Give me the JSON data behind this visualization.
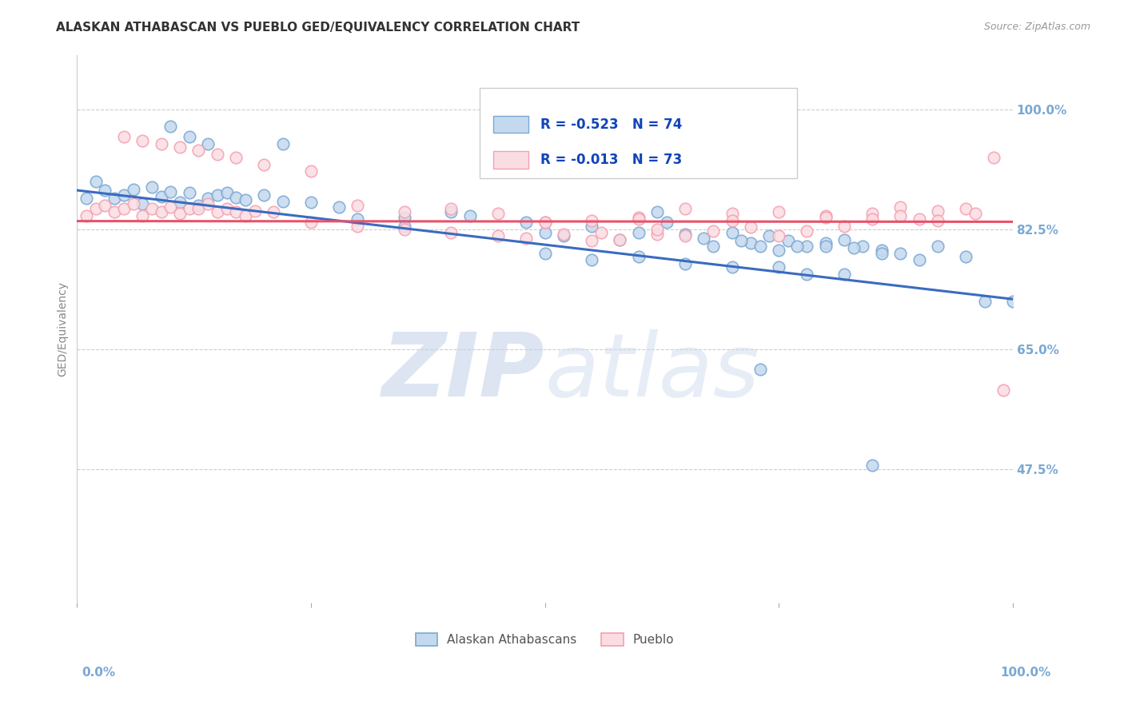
{
  "title": "ALASKAN ATHABASCAN VS PUEBLO GED/EQUIVALENCY CORRELATION CHART",
  "source": "Source: ZipAtlas.com",
  "ylabel": "GED/Equivalency",
  "ytick_labels": [
    "47.5%",
    "65.0%",
    "82.5%",
    "100.0%"
  ],
  "ytick_values": [
    0.475,
    0.65,
    0.825,
    1.0
  ],
  "xmin": 0.0,
  "xmax": 1.0,
  "ymin": 0.28,
  "ymax": 1.08,
  "blue_R": -0.523,
  "blue_N": 74,
  "pink_R": -0.013,
  "pink_N": 73,
  "blue_color": "#7AA8D4",
  "pink_color": "#F4A0B0",
  "blue_fill": "#C5D9EE",
  "pink_fill": "#FADDE3",
  "blue_line_color": "#3A6BBF",
  "pink_line_color": "#E8526A",
  "legend_label_blue": "Alaskan Athabascans",
  "legend_label_pink": "Pueblo",
  "watermark_zip": "ZIP",
  "watermark_atlas": "atlas",
  "watermark_color": "#C5D5E8",
  "blue_scatter_x": [
    0.01,
    0.02,
    0.03,
    0.04,
    0.05,
    0.06,
    0.07,
    0.08,
    0.09,
    0.1,
    0.11,
    0.12,
    0.13,
    0.14,
    0.15,
    0.16,
    0.17,
    0.18,
    0.2,
    0.22,
    0.25,
    0.28,
    0.1,
    0.12,
    0.14,
    0.22,
    0.3,
    0.35,
    0.4,
    0.5,
    0.55,
    0.6,
    0.62,
    0.65,
    0.68,
    0.7,
    0.72,
    0.74,
    0.76,
    0.78,
    0.8,
    0.82,
    0.84,
    0.86,
    0.88,
    0.9,
    0.92,
    0.95,
    0.97,
    1.0,
    0.35,
    0.42,
    0.48,
    0.52,
    0.58,
    0.63,
    0.67,
    0.71,
    0.73,
    0.75,
    0.77,
    0.8,
    0.83,
    0.86,
    0.5,
    0.55,
    0.6,
    0.65,
    0.7,
    0.75,
    0.78,
    0.82,
    0.73,
    0.85
  ],
  "blue_scatter_y": [
    0.87,
    0.895,
    0.882,
    0.87,
    0.875,
    0.883,
    0.862,
    0.887,
    0.873,
    0.88,
    0.865,
    0.878,
    0.86,
    0.87,
    0.875,
    0.879,
    0.872,
    0.868,
    0.875,
    0.866,
    0.865,
    0.858,
    0.975,
    0.96,
    0.95,
    0.95,
    0.84,
    0.842,
    0.85,
    0.82,
    0.83,
    0.82,
    0.85,
    0.818,
    0.8,
    0.82,
    0.805,
    0.815,
    0.808,
    0.8,
    0.805,
    0.81,
    0.8,
    0.795,
    0.79,
    0.78,
    0.8,
    0.785,
    0.72,
    0.72,
    0.83,
    0.845,
    0.835,
    0.815,
    0.81,
    0.835,
    0.812,
    0.808,
    0.8,
    0.795,
    0.8,
    0.8,
    0.798,
    0.79,
    0.79,
    0.78,
    0.785,
    0.775,
    0.77,
    0.77,
    0.76,
    0.76,
    0.62,
    0.48
  ],
  "pink_scatter_x": [
    0.01,
    0.02,
    0.03,
    0.04,
    0.05,
    0.06,
    0.07,
    0.08,
    0.09,
    0.1,
    0.11,
    0.12,
    0.13,
    0.14,
    0.15,
    0.16,
    0.17,
    0.18,
    0.19,
    0.21,
    0.05,
    0.07,
    0.09,
    0.11,
    0.13,
    0.15,
    0.17,
    0.2,
    0.25,
    0.3,
    0.35,
    0.4,
    0.45,
    0.5,
    0.55,
    0.6,
    0.65,
    0.7,
    0.75,
    0.8,
    0.85,
    0.88,
    0.9,
    0.92,
    0.95,
    0.98,
    0.3,
    0.4,
    0.5,
    0.6,
    0.7,
    0.8,
    0.55,
    0.65,
    0.75,
    0.45,
    0.35,
    0.25,
    0.58,
    0.62,
    0.68,
    0.72,
    0.78,
    0.82,
    0.85,
    0.88,
    0.92,
    0.96,
    0.48,
    0.52,
    0.56,
    0.62,
    0.99
  ],
  "pink_scatter_y": [
    0.845,
    0.855,
    0.86,
    0.85,
    0.855,
    0.862,
    0.845,
    0.855,
    0.85,
    0.858,
    0.848,
    0.855,
    0.855,
    0.862,
    0.85,
    0.855,
    0.85,
    0.845,
    0.852,
    0.85,
    0.96,
    0.955,
    0.95,
    0.945,
    0.94,
    0.935,
    0.93,
    0.92,
    0.91,
    0.86,
    0.85,
    0.855,
    0.848,
    0.835,
    0.838,
    0.842,
    0.855,
    0.848,
    0.85,
    0.845,
    0.848,
    0.858,
    0.84,
    0.852,
    0.855,
    0.93,
    0.83,
    0.82,
    0.835,
    0.84,
    0.838,
    0.842,
    0.808,
    0.815,
    0.815,
    0.815,
    0.825,
    0.835,
    0.81,
    0.818,
    0.822,
    0.828,
    0.822,
    0.83,
    0.84,
    0.845,
    0.838,
    0.848,
    0.812,
    0.818,
    0.82,
    0.825,
    0.59
  ],
  "blue_trendline_x": [
    0.0,
    1.0
  ],
  "blue_trendline_y": [
    0.882,
    0.723
  ],
  "pink_trendline_x": [
    0.0,
    1.0
  ],
  "pink_trendline_y": [
    0.837,
    0.836
  ]
}
